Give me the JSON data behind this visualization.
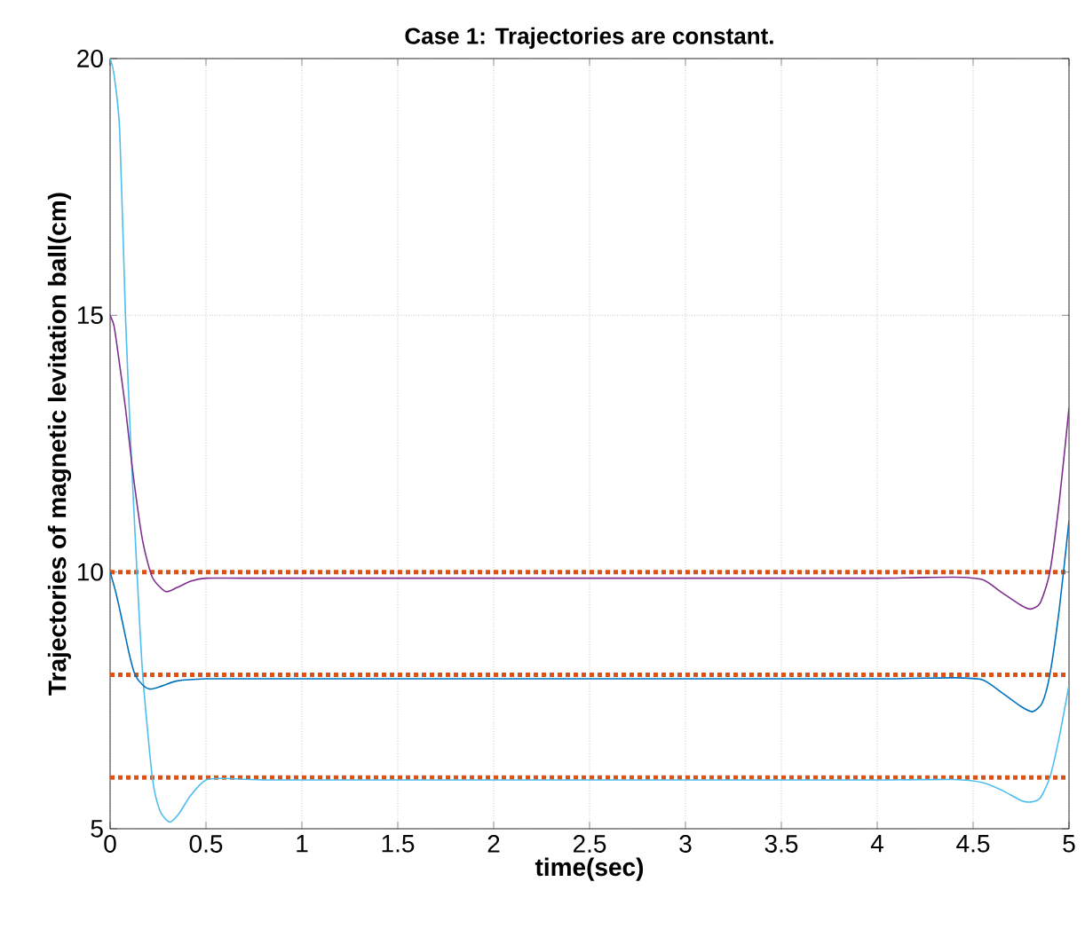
{
  "chart_data": {
    "type": "line",
    "title": "Case 1: Trajectories are constant.",
    "xlabel": "time(sec)",
    "ylabel": "Trajectories of magnetic levitation ball(cm)",
    "xlim": [
      0,
      5
    ],
    "ylim": [
      5,
      20
    ],
    "xticks": [
      0,
      0.5,
      1,
      1.5,
      2,
      2.5,
      3,
      3.5,
      4,
      4.5,
      5
    ],
    "yticks": [
      5,
      10,
      15,
      20
    ],
    "grid": true,
    "series": [
      {
        "color": "#4dbeee",
        "x": [
          0,
          0.02,
          0.05,
          0.08,
          0.11,
          0.14,
          0.17,
          0.22,
          0.26,
          0.31,
          0.36,
          0.42,
          0.5,
          0.6,
          0.8,
          1.5,
          3,
          4,
          4.4,
          4.55,
          4.65,
          4.75,
          4.8,
          4.85,
          4.9,
          4.95,
          5
        ],
        "values": [
          20,
          19.7,
          18.6,
          15,
          12.3,
          10,
          8,
          6,
          5.35,
          5.13,
          5.3,
          5.65,
          5.95,
          5.98,
          5.95,
          5.95,
          5.95,
          5.95,
          5.96,
          5.9,
          5.75,
          5.55,
          5.52,
          5.6,
          6,
          6.8,
          7.8
        ]
      },
      {
        "color": "#7e2f8e",
        "x": [
          0,
          0.02,
          0.04,
          0.08,
          0.12,
          0.17,
          0.22,
          0.29,
          0.35,
          0.42,
          0.5,
          0.7,
          1.5,
          3,
          4,
          4.4,
          4.55,
          4.65,
          4.75,
          4.8,
          4.85,
          4.9,
          4.95,
          5
        ],
        "values": [
          15,
          14.8,
          14.3,
          13.2,
          11.9,
          10.6,
          9.9,
          9.62,
          9.7,
          9.82,
          9.88,
          9.88,
          9.88,
          9.88,
          9.88,
          9.9,
          9.85,
          9.6,
          9.35,
          9.28,
          9.4,
          10,
          11.4,
          13.2
        ]
      },
      {
        "color": "#0072bd",
        "x": [
          0,
          0.03,
          0.06,
          0.1,
          0.13,
          0.17,
          0.21,
          0.27,
          0.35,
          0.5,
          0.7,
          1.5,
          3,
          4,
          4.4,
          4.55,
          4.65,
          4.75,
          4.81,
          4.86,
          4.9,
          4.95,
          5
        ],
        "values": [
          10,
          9.6,
          9.1,
          8.4,
          8,
          7.8,
          7.72,
          7.78,
          7.88,
          7.92,
          7.92,
          7.92,
          7.92,
          7.92,
          7.94,
          7.9,
          7.65,
          7.38,
          7.28,
          7.45,
          8,
          9.3,
          11
        ]
      }
    ],
    "ref_lines": [
      {
        "axis": "y",
        "value": 10,
        "color": "#d95319",
        "line_style": "dotted"
      },
      {
        "axis": "y",
        "value": 8,
        "color": "#d95319",
        "line_style": "dotted"
      },
      {
        "axis": "y",
        "value": 6,
        "color": "#d95319",
        "line_style": "dotted"
      }
    ]
  }
}
